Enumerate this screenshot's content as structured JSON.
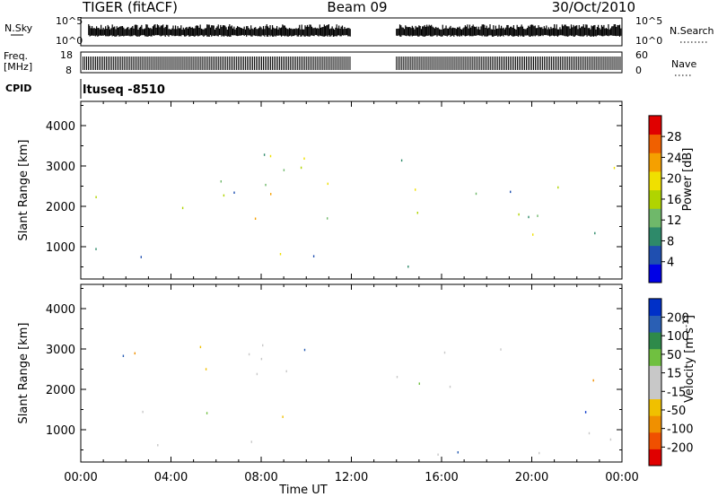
{
  "header": {
    "radar": "TIGER (fitACF)",
    "beam": "Beam 09",
    "date": "30/Oct/2010"
  },
  "noise_panel": {
    "left_label": "N.Sky",
    "right_label": "N.Search",
    "ticks": [
      "10^5",
      "10^0"
    ]
  },
  "freq_panel": {
    "left_label_1": "Freq.",
    "left_label_2": "[MHz]",
    "left_ticks": [
      "18",
      "8"
    ],
    "right_label": "Nave",
    "right_ticks": [
      "60",
      "0"
    ]
  },
  "cpid": {
    "label": "CPID",
    "value": "ltuseq -8510"
  },
  "chart_data": [
    {
      "type": "heatmap",
      "title": "",
      "parameter": "Power",
      "ylabel": "Slant Range [km]",
      "ylim": [
        200,
        4600
      ],
      "yticks": [
        "1000",
        "2000",
        "3000",
        "4000"
      ],
      "xlim_hours": [
        0,
        24
      ],
      "colorbar_label": "Power [dB]",
      "colorbar_ticks": [
        "4",
        "8",
        "12",
        "16",
        "20",
        "24",
        "28"
      ],
      "colorbar_range": [
        0,
        32
      ],
      "colors": [
        "#0000e6",
        "#1f4fb0",
        "#2e8a6a",
        "#6fb86a",
        "#b0d400",
        "#f0e000",
        "#f5a000",
        "#f06000",
        "#e00000"
      ],
      "data_gap_hours": [
        12.0,
        14.0
      ],
      "echo_regions": [
        {
          "t0": 0.3,
          "t1": 12.0,
          "r0": 700,
          "r1": 3300,
          "mean_db": 14
        },
        {
          "t0": 8.8,
          "t1": 12.0,
          "r0": 650,
          "r1": 1300,
          "mean_db": 27
        },
        {
          "t0": 5.5,
          "t1": 12.0,
          "r0": 1400,
          "r1": 2700,
          "mean_db": 20
        },
        {
          "t0": 14.0,
          "t1": 24.0,
          "r0": 1200,
          "r1": 3300,
          "mean_db": 12
        },
        {
          "t0": 19.0,
          "t1": 22.5,
          "r0": 1600,
          "r1": 2600,
          "mean_db": 20
        },
        {
          "t0": 14.0,
          "t1": 24.0,
          "r0": 250,
          "r1": 500,
          "mean_db": 6
        }
      ]
    },
    {
      "type": "heatmap",
      "title": "",
      "parameter": "Velocity",
      "ylabel": "Slant Range [km]",
      "ylim": [
        200,
        4600
      ],
      "yticks": [
        "1000",
        "2000",
        "3000",
        "4000"
      ],
      "xlabel": "Time UT",
      "xticks": [
        "00:00",
        "04:00",
        "08:00",
        "12:00",
        "16:00",
        "20:00",
        "00:00"
      ],
      "xlim_hours": [
        0,
        24
      ],
      "colorbar_label": "Velocity [m s",
      "colorbar_label_sup": "-1",
      "colorbar_label_end": "]",
      "colorbar_ticks": [
        "200",
        "100",
        "50",
        "15",
        "-15",
        "-50",
        "-100",
        "-200"
      ],
      "colors": [
        "#0030c8",
        "#2a5fb4",
        "#2e8a4a",
        "#70c040",
        "#c8c8c8",
        "#c8c8c8",
        "#f0c000",
        "#f09000",
        "#f05000",
        "#e00000"
      ],
      "data_gap_hours": [
        12.0,
        14.0
      ],
      "echo_regions": [
        {
          "t0": 0.3,
          "t1": 12.0,
          "r0": 350,
          "r1": 3200,
          "mean_ms": 0
        },
        {
          "t0": 14.0,
          "t1": 24.0,
          "r0": 300,
          "r1": 3000,
          "mean_ms": 0
        },
        {
          "t0": 19.8,
          "t1": 22.3,
          "r0": 2950,
          "r1": 3250,
          "mean_ms": 220
        }
      ]
    }
  ]
}
